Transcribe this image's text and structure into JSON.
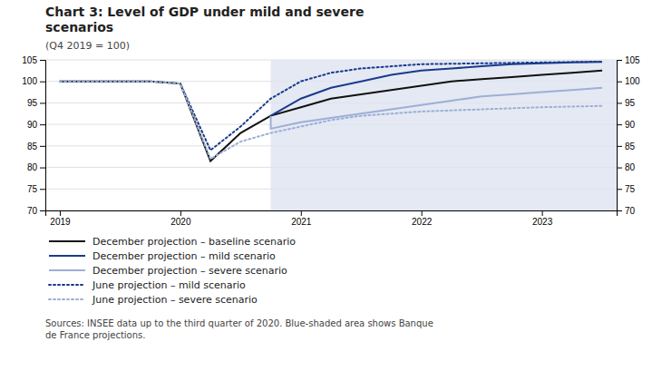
{
  "chart_data": {
    "type": "line",
    "title": "Chart 3: Level of GDP under mild and severe\nscenarios",
    "subtitle": "(Q4 2019 = 100)",
    "annotations": [
      "Sources: INSEE data up to the third quarter of 2020. Blue-shaded area shows Banque\nde France projections."
    ],
    "xlim": [
      2018.88,
      2023.62
    ],
    "xticks": [
      2019,
      2020,
      2021,
      2022,
      2023
    ],
    "ylim": [
      70,
      105
    ],
    "yticks": [
      70,
      75,
      80,
      85,
      90,
      95,
      100,
      105
    ],
    "y2lim": [
      70,
      105
    ],
    "y2ticks": [
      70,
      75,
      80,
      85,
      90,
      95,
      100,
      105
    ],
    "grid": true,
    "shaded_region": {
      "start": 2020.75,
      "end": 2023.62,
      "color": "#dde3f0"
    },
    "series": [
      {
        "name": "December projection – baseline scenario",
        "color": "#111111",
        "line_style": "solid",
        "x": [
          2019.0,
          2019.25,
          2019.5,
          2019.75,
          2020.0,
          2020.25,
          2020.5,
          2020.75,
          2020.75,
          2021.0,
          2021.25,
          2021.5,
          2021.75,
          2022.0,
          2022.25,
          2022.5,
          2022.75,
          2023.0,
          2023.25,
          2023.5
        ],
        "values": [
          100.0,
          100.0,
          100.0,
          100.0,
          99.5,
          81.5,
          88.0,
          92.0,
          92.0,
          94.0,
          96.0,
          97.0,
          98.0,
          99.0,
          100.0,
          100.5,
          101.0,
          101.5,
          102.0,
          102.5
        ]
      },
      {
        "name": "December projection – mild scenario",
        "color": "#1a3a8c",
        "line_style": "solid",
        "x": [
          2020.75,
          2020.75,
          2021.0,
          2021.25,
          2021.5,
          2021.75,
          2022.0,
          2022.25,
          2022.5,
          2022.75,
          2023.0,
          2023.25,
          2023.5
        ],
        "values": [
          92.0,
          92.0,
          96.0,
          98.5,
          100.0,
          101.5,
          102.5,
          103.0,
          103.5,
          104.0,
          104.2,
          104.4,
          104.5
        ]
      },
      {
        "name": "December projection – severe scenario",
        "color": "#9dafd6",
        "line_style": "solid",
        "x": [
          2020.75,
          2020.75,
          2021.0,
          2021.25,
          2021.5,
          2021.75,
          2022.0,
          2022.25,
          2022.5,
          2022.75,
          2023.0,
          2023.25,
          2023.5
        ],
        "values": [
          92.0,
          89.0,
          90.5,
          91.5,
          92.5,
          93.5,
          94.5,
          95.5,
          96.5,
          97.0,
          97.5,
          98.0,
          98.5
        ]
      },
      {
        "name": "June projection – mild scenario",
        "color": "#1a3a8c",
        "line_style": "dotted",
        "x": [
          2019.0,
          2019.25,
          2019.5,
          2019.75,
          2020.0,
          2020.25,
          2020.5,
          2020.75,
          2021.0,
          2021.25,
          2021.5,
          2021.75,
          2022.0,
          2022.5,
          2023.0,
          2023.5
        ],
        "values": [
          100.0,
          100.0,
          100.0,
          100.0,
          99.5,
          84.0,
          89.5,
          96.0,
          100.0,
          102.0,
          103.0,
          103.5,
          104.0,
          104.2,
          104.4,
          104.6
        ]
      },
      {
        "name": "June projection – severe scenario",
        "color": "#9dafd6",
        "line_style": "dotted",
        "x": [
          2019.0,
          2019.25,
          2019.5,
          2019.75,
          2020.0,
          2020.25,
          2020.5,
          2020.75,
          2021.0,
          2021.25,
          2021.5,
          2021.75,
          2022.0,
          2022.5,
          2023.0,
          2023.5
        ],
        "values": [
          100.0,
          100.0,
          100.0,
          100.0,
          99.5,
          82.0,
          86.0,
          88.0,
          89.5,
          91.0,
          92.0,
          92.5,
          93.0,
          93.5,
          94.0,
          94.3
        ]
      }
    ]
  }
}
